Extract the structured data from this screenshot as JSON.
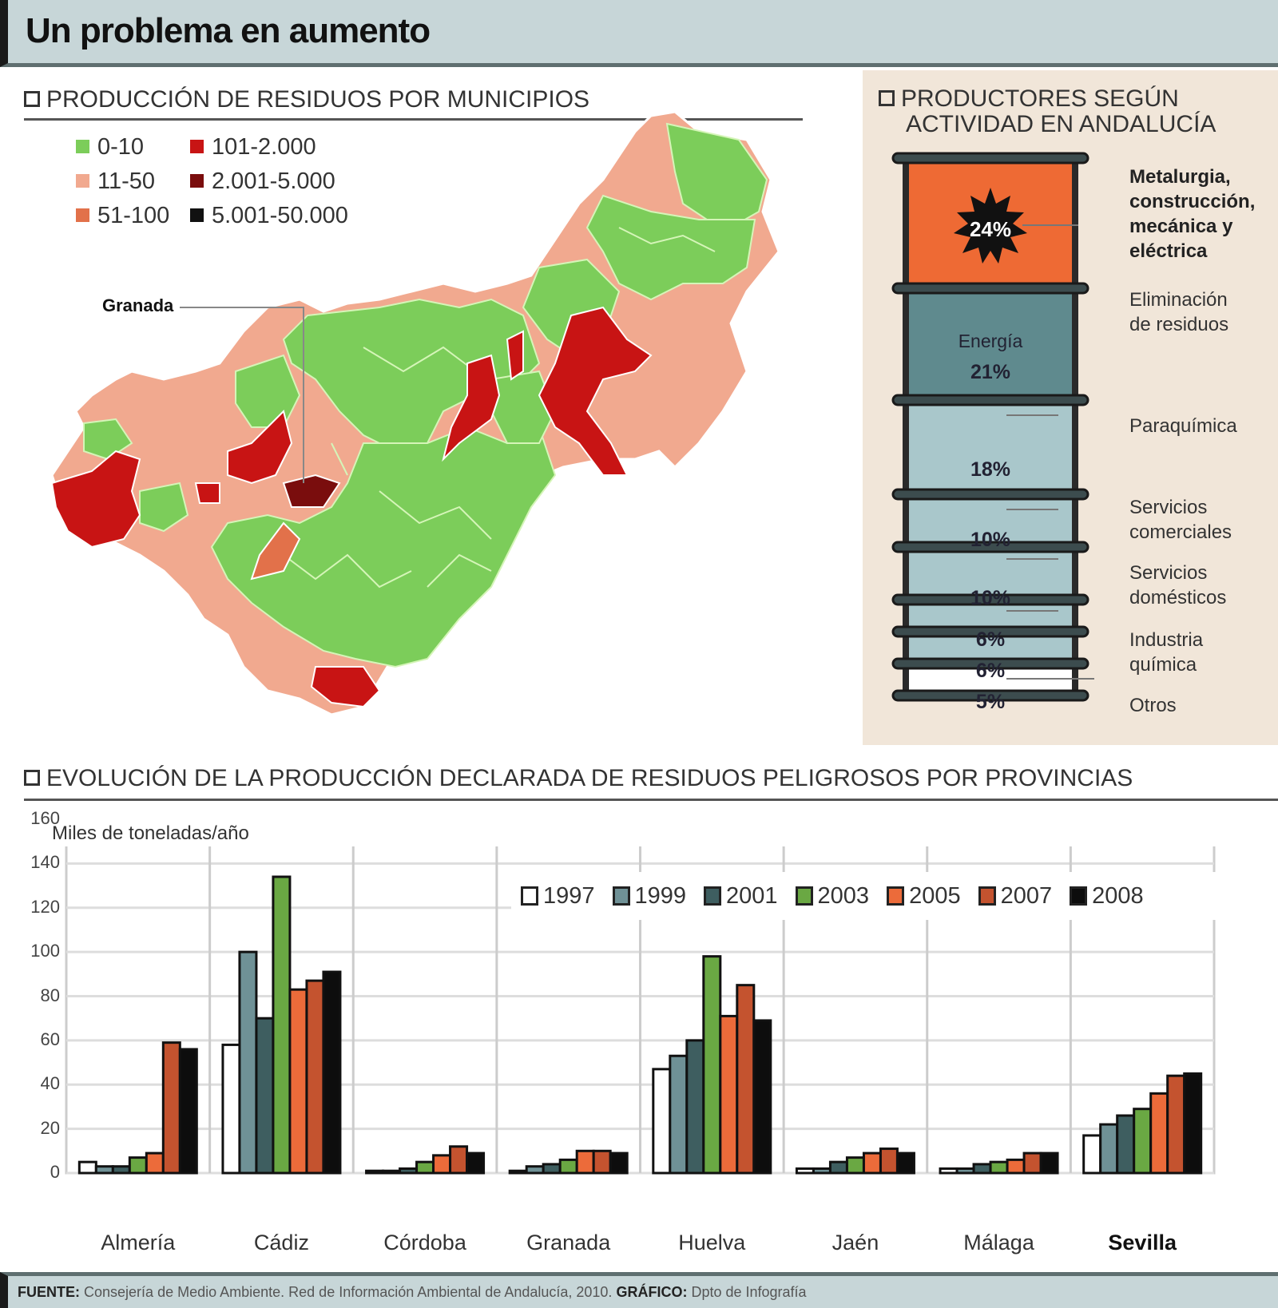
{
  "title": "Un problema en aumento",
  "map_section": {
    "title": "PRODUCCIÓN DE RESIDUOS POR MUNICIPIOS",
    "legend": [
      {
        "label": "0-10",
        "color": "#7ccd5a"
      },
      {
        "label": "11-50",
        "color": "#f1a98f"
      },
      {
        "label": "51-100",
        "color": "#e2714a"
      },
      {
        "label": "101-2.000",
        "color": "#c81414"
      },
      {
        "label": "2.001-5.000",
        "color": "#7a0d0d"
      },
      {
        "label": "5.001-50.000",
        "color": "#111111"
      }
    ],
    "city_label": "Granada"
  },
  "barrel_section": {
    "title_line1": "PRODUCTORES SEGÚN",
    "title_line2": "ACTIVIDAD EN ANDALUCÍA",
    "segments": [
      {
        "pct": "24%",
        "label": "Metalurgia, construcción, mecánica y eléctrica",
        "color": "#ee6a34"
      },
      {
        "pct": "21%",
        "pre": "Energía",
        "label": "Eliminación de residuos",
        "color": "#5f8a8e"
      },
      {
        "pct": "18%",
        "label": "Paraquímica",
        "color": "#a9c7cb"
      },
      {
        "pct": "10%",
        "label": "Servicios comerciales",
        "color": "#a9c7cb"
      },
      {
        "pct": "10%",
        "label": "Servicios domésticos",
        "color": "#a9c7cb"
      },
      {
        "pct": "6%",
        "label": "Industria química",
        "color": "#a9c7cb"
      },
      {
        "pct": "6%",
        "label": "Industria química",
        "color": "#a9c7cb"
      },
      {
        "pct": "5%",
        "label": "Otros",
        "color": "#ffffff"
      }
    ],
    "labels": {
      "metalurgia": [
        "Metalurgia,",
        "construcción,",
        "mecánica y",
        "eléctrica"
      ],
      "eliminacion": [
        "Eliminación",
        "de residuos"
      ],
      "energia": "Energía",
      "paraquimica": "Paraquímica",
      "serv_com": [
        "Servicios",
        "comerciales"
      ],
      "serv_dom": [
        "Servicios",
        "domésticos"
      ],
      "ind_quim": [
        "Industria",
        "química"
      ],
      "otros": "Otros"
    }
  },
  "bar_section": {
    "title": "EVOLUCIÓN DE LA PRODUCCIÓN DECLARADA DE RESIDUOS PELIGROSOS POR PROVINCIAS",
    "unit_label": "Miles de toneladas/año"
  },
  "chart_data": {
    "type": "bar",
    "title": "Evolución de la producción declarada de residuos peligrosos por provincias",
    "ylabel": "Miles de toneladas/año",
    "xlabel": "",
    "ylim": [
      0,
      160
    ],
    "yticks": [
      0,
      20,
      40,
      60,
      80,
      100,
      120,
      140,
      160
    ],
    "grid": true,
    "legend_position": "top-right inside",
    "categories": [
      "Almería",
      "Cádiz",
      "Córdoba",
      "Granada",
      "Huelva",
      "Jaén",
      "Málaga",
      "Sevilla"
    ],
    "series": [
      {
        "name": "1997",
        "color": "#ffffff",
        "values": [
          5,
          58,
          1,
          1,
          47,
          2,
          2,
          17
        ]
      },
      {
        "name": "1999",
        "color": "#6f9196",
        "values": [
          3,
          100,
          1,
          3,
          53,
          2,
          2,
          22
        ]
      },
      {
        "name": "2001",
        "color": "#3e5e60",
        "values": [
          3,
          70,
          2,
          4,
          60,
          5,
          4,
          26
        ]
      },
      {
        "name": "2003",
        "color": "#6aa843",
        "values": [
          7,
          134,
          5,
          6,
          98,
          7,
          5,
          29
        ]
      },
      {
        "name": "2005",
        "color": "#ec6b3a",
        "values": [
          9,
          83,
          8,
          10,
          71,
          9,
          6,
          36
        ]
      },
      {
        "name": "2007",
        "color": "#c4532f",
        "values": [
          59,
          87,
          12,
          10,
          85,
          11,
          9,
          44
        ]
      },
      {
        "name": "2008",
        "color": "#0d0d0d",
        "values": [
          56,
          91,
          9,
          9,
          69,
          9,
          9,
          45
        ]
      }
    ]
  },
  "footer": {
    "source_label": "FUENTE:",
    "source_text": "Consejería de Medio Ambiente. Red de Información Ambiental de Andalucía, 2010.",
    "graphic_label": "GRÁFICO:",
    "graphic_text": "Dpto de Infografía"
  }
}
